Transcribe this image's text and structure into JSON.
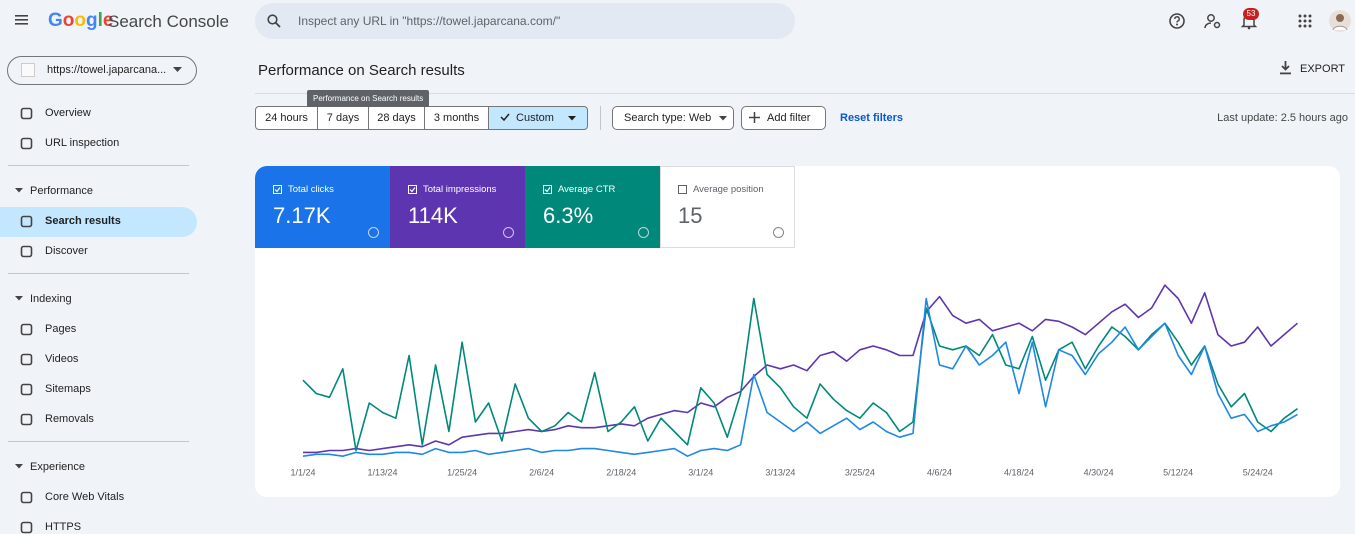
{
  "header": {
    "logo": "Google",
    "product": "Search Console",
    "search_placeholder": "Inspect any URL in \"https://towel.japarcana.com/\"",
    "notifications": "53"
  },
  "property": "https://towel.japarcana...",
  "nav": {
    "top": [
      "Overview",
      "URL inspection"
    ],
    "sections": [
      {
        "title": "Performance",
        "items": [
          "Search results",
          "Discover"
        ]
      },
      {
        "title": "Indexing",
        "items": [
          "Pages",
          "Videos",
          "Sitemaps",
          "Removals"
        ]
      },
      {
        "title": "Experience",
        "items": [
          "Core Web Vitals",
          "HTTPS"
        ]
      }
    ]
  },
  "main": {
    "title": "Performance on Search results",
    "export": "EXPORT",
    "tooltip": "Performance on Search results",
    "date_ranges": [
      "24 hours",
      "7 days",
      "28 days",
      "3 months",
      "Custom"
    ],
    "search_type": "Search type: Web",
    "add_filter": "Add filter",
    "reset_filters": "Reset filters",
    "last_update": "Last update: 2.5 hours ago"
  },
  "metrics": [
    {
      "label": "Total clicks",
      "value": "7.17K",
      "color": "#1a73e8",
      "selected": true
    },
    {
      "label": "Total impressions",
      "value": "114K",
      "color": "#5e35b1",
      "selected": true
    },
    {
      "label": "Average CTR",
      "value": "6.3%",
      "color": "#00897b",
      "selected": true
    },
    {
      "label": "Average position",
      "value": "15",
      "color": "#e8710a",
      "selected": false
    }
  ],
  "chart": {
    "type": "line",
    "xticks": [
      "1/1/24",
      "1/13/24",
      "1/25/24",
      "2/6/24",
      "2/18/24",
      "3/1/24",
      "3/13/24",
      "3/25/24",
      "4/6/24",
      "4/18/24",
      "4/30/24",
      "5/12/24",
      "5/24/24"
    ],
    "ylim": [
      0,
      100
    ],
    "series": [
      {
        "color": "#5e35b1",
        "values": [
          4,
          4,
          5,
          5,
          6,
          5,
          6,
          7,
          8,
          7,
          10,
          8,
          12,
          13,
          14,
          14,
          15,
          16,
          15,
          16,
          18,
          17,
          17,
          18,
          19,
          18,
          22,
          24,
          26,
          25,
          30,
          28,
          33,
          36,
          44,
          50,
          48,
          50,
          47,
          55,
          57,
          52,
          58,
          60,
          58,
          55,
          55,
          78,
          86,
          76,
          72,
          74,
          68,
          70,
          72,
          68,
          74,
          73,
          70,
          66,
          72,
          78,
          82,
          75,
          80,
          92,
          85,
          72,
          88,
          66,
          60,
          62,
          70,
          60,
          66,
          72
        ]
      },
      {
        "color": "#00897b",
        "values": [
          42,
          35,
          33,
          48,
          5,
          30,
          25,
          22,
          55,
          8,
          50,
          15,
          62,
          20,
          30,
          10,
          40,
          22,
          15,
          18,
          25,
          20,
          46,
          15,
          20,
          28,
          10,
          22,
          15,
          8,
          38,
          30,
          12,
          35,
          85,
          45,
          38,
          28,
          22,
          40,
          32,
          26,
          22,
          30,
          25,
          15,
          20,
          80,
          60,
          58,
          60,
          55,
          66,
          50,
          48,
          65,
          42,
          58,
          62,
          48,
          60,
          70,
          65,
          58,
          66,
          72,
          62,
          50,
          60,
          40,
          28,
          35,
          20,
          15,
          22,
          27
        ]
      },
      {
        "color": "#1e88e5",
        "values": [
          2,
          3,
          3,
          2,
          4,
          3,
          3,
          4,
          4,
          3,
          6,
          4,
          4,
          5,
          3,
          4,
          5,
          6,
          4,
          5,
          5,
          6,
          6,
          5,
          4,
          3,
          4,
          5,
          6,
          2,
          5,
          6,
          5,
          8,
          45,
          25,
          20,
          15,
          20,
          14,
          18,
          22,
          16,
          20,
          15,
          12,
          14,
          85,
          50,
          48,
          60,
          50,
          55,
          62,
          35,
          62,
          28,
          58,
          55,
          45,
          56,
          62,
          70,
          58,
          65,
          72,
          55,
          45,
          60,
          35,
          22,
          24,
          15,
          18,
          20,
          24
        ]
      }
    ]
  }
}
